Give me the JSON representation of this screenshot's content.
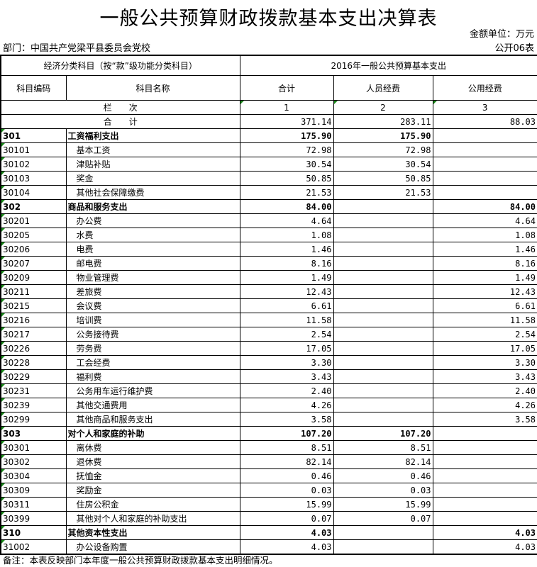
{
  "title": "一般公共预算财政拨款基本支出决算表",
  "unit": "金额单位：万元",
  "department": "部门：中国共产党梁平县委员会党校",
  "form_no": "公开06表",
  "header": {
    "group_left": "经济分类科目（按“款”级功能分类科目）",
    "group_right": "2016年一般公共预算基本支出",
    "code": "科目编码",
    "name": "科目名称",
    "total": "合计",
    "personnel": "人员经费",
    "public": "公用经费",
    "col_label": "栏　　次",
    "col1": "1",
    "col2": "2",
    "col3": "3"
  },
  "totals": {
    "label": "合　　计",
    "total": "371.14",
    "personnel": "283.11",
    "public": "88.03"
  },
  "rows": [
    {
      "code": "301",
      "name": "工资福利支出",
      "total": "175.90",
      "personnel": "175.90",
      "public": "",
      "bold": true
    },
    {
      "code": "30101",
      "name": "基本工资",
      "total": "72.98",
      "personnel": "72.98",
      "public": ""
    },
    {
      "code": "30102",
      "name": "津贴补贴",
      "total": "30.54",
      "personnel": "30.54",
      "public": ""
    },
    {
      "code": "30103",
      "name": "奖金",
      "total": "50.85",
      "personnel": "50.85",
      "public": ""
    },
    {
      "code": "30104",
      "name": "其他社会保障缴费",
      "total": "21.53",
      "personnel": "21.53",
      "public": ""
    },
    {
      "code": "302",
      "name": "商品和服务支出",
      "total": "84.00",
      "personnel": "",
      "public": "84.00",
      "bold": true
    },
    {
      "code": "30201",
      "name": "办公费",
      "total": "4.64",
      "personnel": "",
      "public": "4.64"
    },
    {
      "code": "30205",
      "name": "水费",
      "total": "1.08",
      "personnel": "",
      "public": "1.08"
    },
    {
      "code": "30206",
      "name": "电费",
      "total": "1.46",
      "personnel": "",
      "public": "1.46"
    },
    {
      "code": "30207",
      "name": "邮电费",
      "total": "8.16",
      "personnel": "",
      "public": "8.16"
    },
    {
      "code": "30209",
      "name": "物业管理费",
      "total": "1.49",
      "personnel": "",
      "public": "1.49"
    },
    {
      "code": "30211",
      "name": "差旅费",
      "total": "12.43",
      "personnel": "",
      "public": "12.43"
    },
    {
      "code": "30215",
      "name": "会议费",
      "total": "6.61",
      "personnel": "",
      "public": "6.61"
    },
    {
      "code": "30216",
      "name": "培训费",
      "total": "11.58",
      "personnel": "",
      "public": "11.58"
    },
    {
      "code": "30217",
      "name": "公务接待费",
      "total": "2.54",
      "personnel": "",
      "public": "2.54"
    },
    {
      "code": "30226",
      "name": "劳务费",
      "total": "17.05",
      "personnel": "",
      "public": "17.05"
    },
    {
      "code": "30228",
      "name": "工会经费",
      "total": "3.30",
      "personnel": "",
      "public": "3.30"
    },
    {
      "code": "30229",
      "name": "福利费",
      "total": "3.43",
      "personnel": "",
      "public": "3.43"
    },
    {
      "code": "30231",
      "name": "公务用车运行维护费",
      "total": "2.40",
      "personnel": "",
      "public": "2.40"
    },
    {
      "code": "30239",
      "name": "其他交通费用",
      "total": "4.26",
      "personnel": "",
      "public": "4.26"
    },
    {
      "code": "30299",
      "name": "其他商品和服务支出",
      "total": "3.58",
      "personnel": "",
      "public": "3.58"
    },
    {
      "code": "303",
      "name": "对个人和家庭的补助",
      "total": "107.20",
      "personnel": "107.20",
      "public": "",
      "bold": true
    },
    {
      "code": "30301",
      "name": "离休费",
      "total": "8.51",
      "personnel": "8.51",
      "public": ""
    },
    {
      "code": "30302",
      "name": "退休费",
      "total": "82.14",
      "personnel": "82.14",
      "public": ""
    },
    {
      "code": "30304",
      "name": "抚恤金",
      "total": "0.46",
      "personnel": "0.46",
      "public": ""
    },
    {
      "code": "30309",
      "name": "奖励金",
      "total": "0.03",
      "personnel": "0.03",
      "public": ""
    },
    {
      "code": "30311",
      "name": "住房公积金",
      "total": "15.99",
      "personnel": "15.99",
      "public": ""
    },
    {
      "code": "30399",
      "name": "其他对个人和家庭的补助支出",
      "total": "0.07",
      "personnel": "0.07",
      "public": ""
    },
    {
      "code": "310",
      "name": "其他资本性支出",
      "total": "4.03",
      "personnel": "",
      "public": "4.03",
      "bold": true
    },
    {
      "code": "31002",
      "name": "办公设备购置",
      "total": "4.03",
      "personnel": "",
      "public": "4.03"
    }
  ],
  "note": "备注：本表反映部门本年度一般公共预算财政拨款基本支出明细情况。"
}
